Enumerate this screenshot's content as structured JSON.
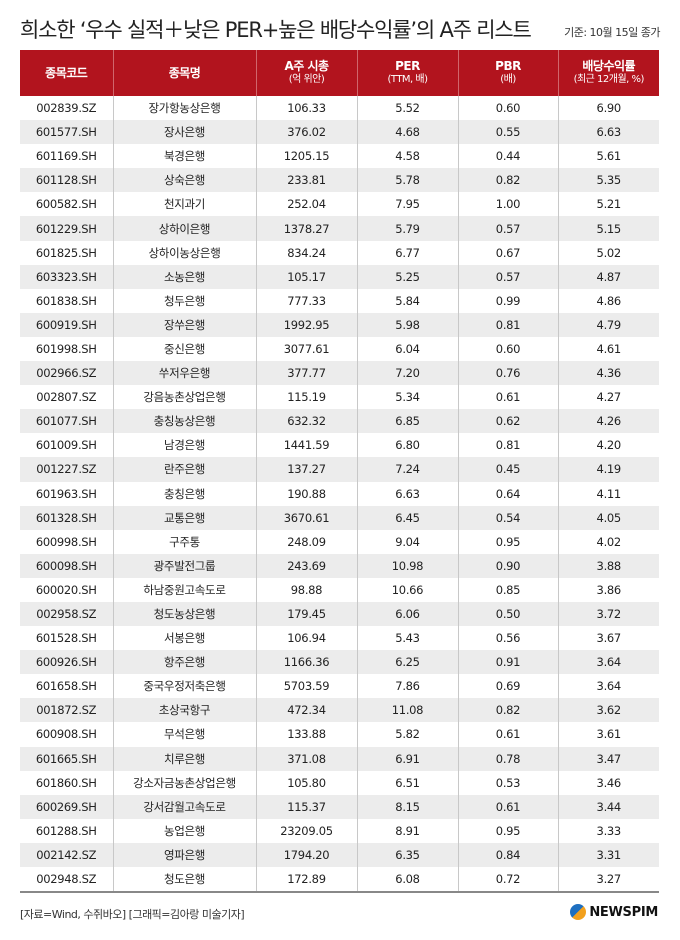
{
  "title": "희소한 ‘우수 실적＋낮은 PER+높은 배당수익률’의 A주 리스트",
  "basis": "기준: 10월 15일 종가",
  "columns": [
    {
      "label": "종목코드",
      "sub": ""
    },
    {
      "label": "종목명",
      "sub": ""
    },
    {
      "label": "A주 시총",
      "sub": "(억 위안)"
    },
    {
      "label": "PER",
      "sub": "(TTM, 배)"
    },
    {
      "label": "PBR",
      "sub": "(배)"
    },
    {
      "label": "배당수익률",
      "sub": "(최근 12개월, %)"
    }
  ],
  "rows": [
    [
      "002839.SZ",
      "장가항농상은행",
      "106.33",
      "5.52",
      "0.60",
      "6.90"
    ],
    [
      "601577.SH",
      "장사은행",
      "376.02",
      "4.68",
      "0.55",
      "6.63"
    ],
    [
      "601169.SH",
      "북경은행",
      "1205.15",
      "4.58",
      "0.44",
      "5.61"
    ],
    [
      "601128.SH",
      "상숙은행",
      "233.81",
      "5.78",
      "0.82",
      "5.35"
    ],
    [
      "600582.SH",
      "천지과기",
      "252.04",
      "7.95",
      "1.00",
      "5.21"
    ],
    [
      "601229.SH",
      "상하이은행",
      "1378.27",
      "5.79",
      "0.57",
      "5.15"
    ],
    [
      "601825.SH",
      "상하이농상은행",
      "834.24",
      "6.77",
      "0.67",
      "5.02"
    ],
    [
      "603323.SH",
      "소농은행",
      "105.17",
      "5.25",
      "0.57",
      "4.87"
    ],
    [
      "601838.SH",
      "청두은행",
      "777.33",
      "5.84",
      "0.99",
      "4.86"
    ],
    [
      "600919.SH",
      "장쑤은행",
      "1992.95",
      "5.98",
      "0.81",
      "4.79"
    ],
    [
      "601998.SH",
      "중신은행",
      "3077.61",
      "6.04",
      "0.60",
      "4.61"
    ],
    [
      "002966.SZ",
      "쑤저우은행",
      "377.77",
      "7.20",
      "0.76",
      "4.36"
    ],
    [
      "002807.SZ",
      "강음농촌상업은행",
      "115.19",
      "5.34",
      "0.61",
      "4.27"
    ],
    [
      "601077.SH",
      "충칭농상은행",
      "632.32",
      "6.85",
      "0.62",
      "4.26"
    ],
    [
      "601009.SH",
      "남경은행",
      "1441.59",
      "6.80",
      "0.81",
      "4.20"
    ],
    [
      "001227.SZ",
      "란주은행",
      "137.27",
      "7.24",
      "0.45",
      "4.19"
    ],
    [
      "601963.SH",
      "충칭은행",
      "190.88",
      "6.63",
      "0.64",
      "4.11"
    ],
    [
      "601328.SH",
      "교통은행",
      "3670.61",
      "6.45",
      "0.54",
      "4.05"
    ],
    [
      "600998.SH",
      "구주통",
      "248.09",
      "9.04",
      "0.95",
      "4.02"
    ],
    [
      "600098.SH",
      "광주발전그룹",
      "243.69",
      "10.98",
      "0.90",
      "3.88"
    ],
    [
      "600020.SH",
      "하남중원고속도로",
      "98.88",
      "10.66",
      "0.85",
      "3.86"
    ],
    [
      "002958.SZ",
      "청도농상은행",
      "179.45",
      "6.06",
      "0.50",
      "3.72"
    ],
    [
      "601528.SH",
      "서봉은행",
      "106.94",
      "5.43",
      "0.56",
      "3.67"
    ],
    [
      "600926.SH",
      "항주은행",
      "1166.36",
      "6.25",
      "0.91",
      "3.64"
    ],
    [
      "601658.SH",
      "중국우정저축은행",
      "5703.59",
      "7.86",
      "0.69",
      "3.64"
    ],
    [
      "001872.SZ",
      "초상국항구",
      "472.34",
      "11.08",
      "0.82",
      "3.62"
    ],
    [
      "600908.SH",
      "무석은행",
      "133.88",
      "5.82",
      "0.61",
      "3.61"
    ],
    [
      "601665.SH",
      "치루은행",
      "371.08",
      "6.91",
      "0.78",
      "3.47"
    ],
    [
      "601860.SH",
      "강소자금농촌상업은행",
      "105.80",
      "6.51",
      "0.53",
      "3.46"
    ],
    [
      "600269.SH",
      "강서감월고속도로",
      "115.37",
      "8.15",
      "0.61",
      "3.44"
    ],
    [
      "601288.SH",
      "농업은행",
      "23209.05",
      "8.91",
      "0.95",
      "3.33"
    ],
    [
      "002142.SZ",
      "영파은행",
      "1794.20",
      "6.35",
      "0.84",
      "3.31"
    ],
    [
      "002948.SZ",
      "청도은행",
      "172.89",
      "6.08",
      "0.72",
      "3.27"
    ]
  ],
  "source": "[자료=Wind, 수쥐바오] [그래픽=김아랑 미술기자]",
  "logo": "NEWSPIM",
  "colors": {
    "header": "#b2141e",
    "zebra": "#ececec"
  }
}
